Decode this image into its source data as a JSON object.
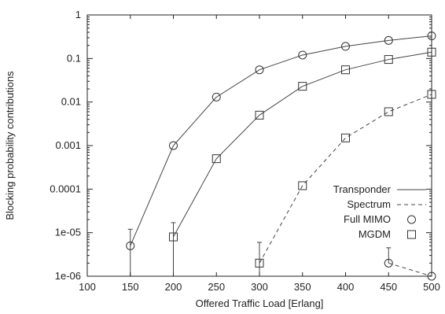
{
  "chart_data": {
    "type": "line",
    "title": "",
    "xlabel": "Offered Traffic Load [Erlang]",
    "ylabel": "Blocking probability contributions",
    "xlim": [
      100,
      500
    ],
    "ylim": [
      1e-06,
      1
    ],
    "yscale": "log",
    "grid": false,
    "legend_position": "lower-right",
    "x_tick_labels": [
      "100",
      "150",
      "200",
      "250",
      "300",
      "350",
      "400",
      "450",
      "500"
    ],
    "y_tick_labels": [
      "1e-06",
      "1e-05",
      "0.0001",
      "0.001",
      "0.01",
      "0.1",
      "1"
    ],
    "series": [
      {
        "name": "Transponder",
        "line_style": "solid",
        "marker": "circle",
        "x": [
          150,
          200,
          250,
          300,
          350,
          400,
          450,
          500
        ],
        "y": [
          5e-06,
          0.001,
          0.013,
          0.055,
          0.12,
          0.19,
          0.26,
          0.33
        ],
        "error_high": [
          1.2e-05,
          null,
          null,
          null,
          null,
          null,
          null,
          null
        ],
        "error_low": [
          1e-06,
          null,
          null,
          null,
          null,
          null,
          null,
          null
        ]
      },
      {
        "name": "Spectrum",
        "line_style": "dashed",
        "marker": "square",
        "x": [
          300,
          350,
          400,
          450,
          500
        ],
        "y": [
          2e-06,
          0.00012,
          0.0015,
          0.006,
          0.015
        ],
        "error_high": [
          6e-06,
          null,
          null,
          null,
          null
        ],
        "error_low": [
          1e-06,
          null,
          null,
          null,
          null
        ]
      },
      {
        "name": "MGDM",
        "line_style": "solid",
        "marker": "square",
        "x": [
          200,
          250,
          300,
          350,
          400,
          450,
          500
        ],
        "y": [
          8e-06,
          0.0005,
          0.005,
          0.023,
          0.055,
          0.095,
          0.14
        ],
        "error_high": [
          1.7e-05,
          null,
          null,
          null,
          null,
          null,
          null
        ],
        "error_low": [
          1e-06,
          null,
          null,
          null,
          null,
          null,
          null
        ]
      },
      {
        "name": "",
        "line_style": "dashed",
        "marker": "circle",
        "x": [
          450,
          500
        ],
        "y": [
          2e-06,
          1e-06
        ],
        "error_high": [
          4.5e-06,
          null
        ],
        "error_low": [
          null,
          null
        ]
      }
    ],
    "legend": [
      {
        "label": "Transponder",
        "symbol": "solid-line"
      },
      {
        "label": "Spectrum",
        "symbol": "dashed-line"
      },
      {
        "label": "Full MIMO",
        "symbol": "circle"
      },
      {
        "label": "MGDM",
        "symbol": "square"
      }
    ]
  }
}
